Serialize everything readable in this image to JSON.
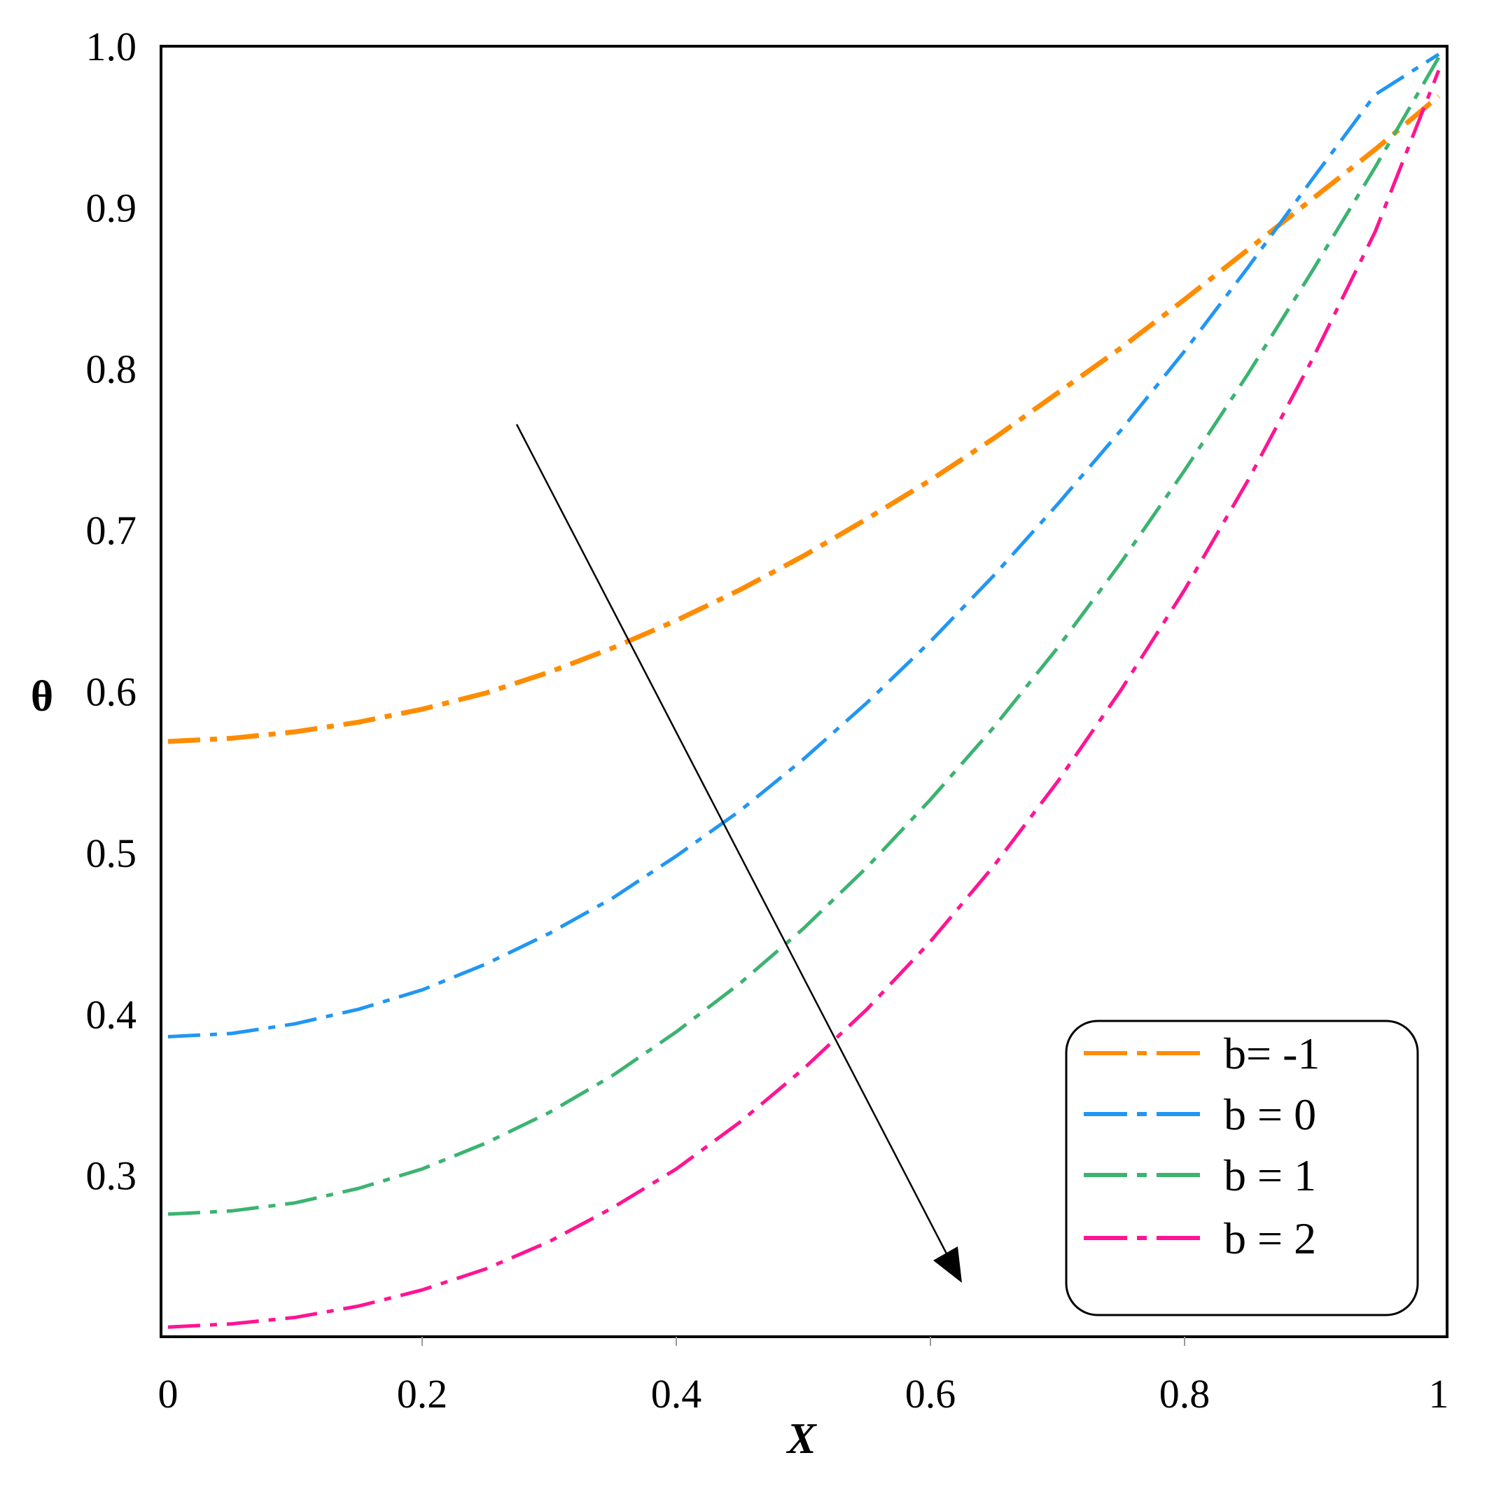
{
  "chart_data": {
    "type": "line",
    "title": "",
    "xlabel": "X",
    "ylabel": "θ",
    "xlim": [
      0,
      1
    ],
    "ylim": [
      0.2,
      1.0
    ],
    "x_ticks": [
      "0",
      "0.2",
      "0.4",
      "0.6",
      "0.8",
      "1"
    ],
    "y_ticks": [
      "0.3",
      "0.4",
      "0.5",
      "0.6",
      "0.7",
      "0.8",
      "0.9",
      "1.0"
    ],
    "grid": false,
    "legend_position": "bottom-right",
    "line_style": "dash-dot",
    "x": [
      0,
      0.05,
      0.1,
      0.15,
      0.2,
      0.25,
      0.3,
      0.35,
      0.4,
      0.45,
      0.5,
      0.55,
      0.6,
      0.65,
      0.7,
      0.75,
      0.8,
      0.85,
      0.9,
      0.95,
      1.0
    ],
    "series": [
      {
        "name": "b= -1",
        "color": "#FF8C00",
        "values": [
          0.569,
          0.571,
          0.575,
          0.581,
          0.589,
          0.599,
          0.612,
          0.627,
          0.644,
          0.663,
          0.684,
          0.707,
          0.731,
          0.757,
          0.785,
          0.813,
          0.843,
          0.874,
          0.905,
          0.936,
          0.969
        ]
      },
      {
        "name": "b = 0",
        "color": "#2196F3",
        "values": [
          0.386,
          0.388,
          0.394,
          0.403,
          0.415,
          0.431,
          0.45,
          0.472,
          0.498,
          0.526,
          0.558,
          0.593,
          0.631,
          0.672,
          0.716,
          0.762,
          0.811,
          0.863,
          0.917,
          0.97,
          0.995
        ]
      },
      {
        "name": "b = 1",
        "color": "#3CB371",
        "values": [
          0.276,
          0.278,
          0.283,
          0.292,
          0.304,
          0.32,
          0.339,
          0.362,
          0.389,
          0.419,
          0.453,
          0.491,
          0.533,
          0.578,
          0.627,
          0.68,
          0.737,
          0.797,
          0.86,
          0.925,
          0.993
        ]
      },
      {
        "name": "b = 2",
        "color": "#FF1493",
        "values": [
          0.206,
          0.208,
          0.212,
          0.219,
          0.229,
          0.242,
          0.259,
          0.28,
          0.304,
          0.333,
          0.366,
          0.403,
          0.445,
          0.492,
          0.544,
          0.601,
          0.663,
          0.731,
          0.805,
          0.885,
          0.985
        ]
      }
    ]
  }
}
